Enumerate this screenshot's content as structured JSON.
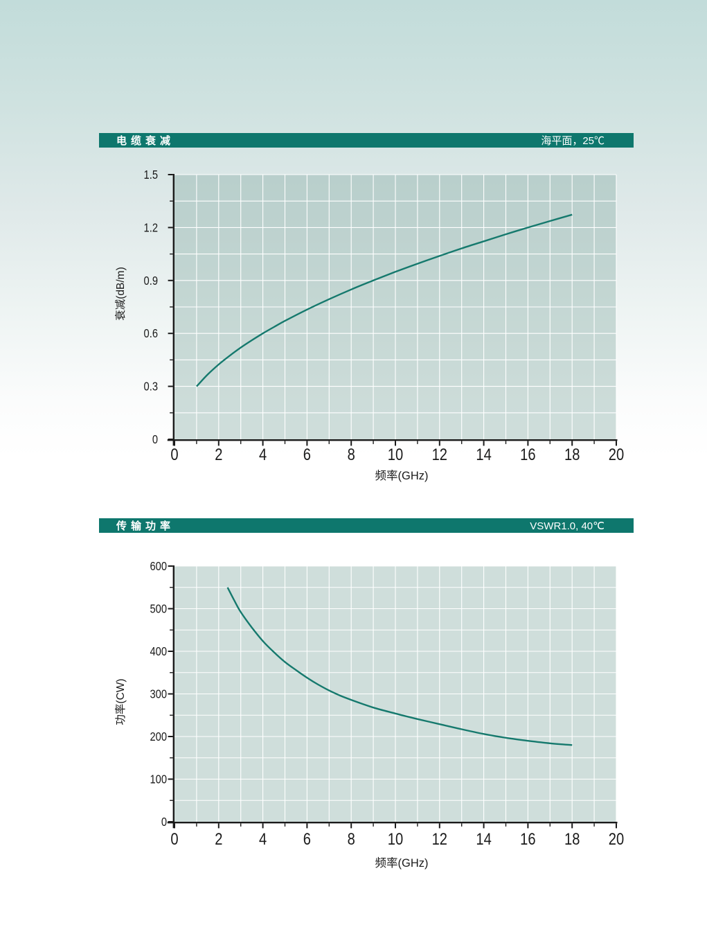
{
  "style": {
    "header_bg": "#0e776d",
    "plot_bg": "rgba(135,172,165,0.4)",
    "grid_color": "#ffffff",
    "line_color": "#15796d",
    "axis_color": "#1a1a1a",
    "text_color": "#1a1a1a",
    "header_text_color": "#ffffff"
  },
  "chart_data": [
    {
      "type": "line",
      "title": "电缆衰减",
      "condition": "海平面，25℃",
      "xlabel": "频率(GHz)",
      "ylabel": "衰减(dB/m)",
      "xlim": [
        0,
        20
      ],
      "ylim": [
        0,
        1.5
      ],
      "x_major": 2,
      "x_minor": 1,
      "y_major": 0.3,
      "y_minor": 0.15,
      "grid": true,
      "series": [
        {
          "name": "attenuation",
          "x": [
            1,
            1.5,
            2,
            2.5,
            3,
            3.5,
            4,
            4.5,
            5,
            6,
            7,
            8,
            9,
            10,
            11,
            12,
            13,
            14,
            15,
            16,
            17,
            18
          ],
          "y": [
            0.3,
            0.367,
            0.424,
            0.474,
            0.52,
            0.561,
            0.6,
            0.636,
            0.671,
            0.735,
            0.794,
            0.849,
            0.9,
            0.949,
            0.995,
            1.039,
            1.082,
            1.122,
            1.162,
            1.2,
            1.237,
            1.273
          ]
        }
      ]
    },
    {
      "type": "line",
      "title": "传输功率",
      "condition": "VSWR1.0, 40℃",
      "xlabel": "频率(GHz)",
      "ylabel": "功率(CW)",
      "xlim": [
        0,
        20
      ],
      "ylim": [
        0,
        600
      ],
      "x_major": 2,
      "x_minor": 1,
      "y_major": 100,
      "y_minor": 50,
      "grid": true,
      "series": [
        {
          "name": "power",
          "x": [
            2.4,
            2.7,
            3,
            3.5,
            4,
            4.5,
            5,
            5.5,
            6,
            6.5,
            7,
            7.5,
            8,
            9,
            10,
            11,
            12,
            13,
            14,
            15,
            16,
            17,
            18
          ],
          "y": [
            550,
            520,
            492,
            456,
            424,
            398,
            375,
            356,
            338,
            322,
            308,
            296,
            286,
            268,
            254,
            241,
            229,
            217,
            206,
            197,
            190,
            184,
            180
          ]
        }
      ]
    }
  ]
}
